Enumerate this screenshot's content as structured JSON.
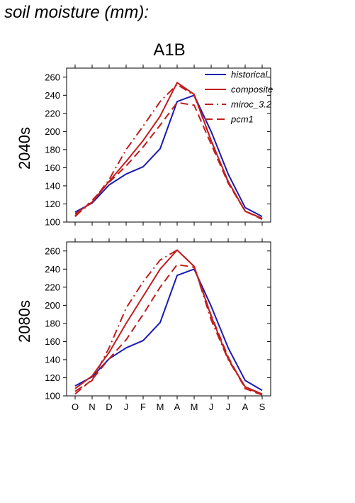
{
  "page": {
    "header_title": "soil moisture (mm):",
    "scenario_title": "A1B"
  },
  "chart_data": [
    {
      "type": "line",
      "row_label": "2040s",
      "categories": [
        "O",
        "N",
        "D",
        "J",
        "F",
        "M",
        "A",
        "M",
        "J",
        "J",
        "A",
        "S"
      ],
      "ylim": [
        100,
        270
      ],
      "yticks": [
        100,
        120,
        140,
        160,
        180,
        200,
        220,
        240,
        260
      ],
      "grid": false,
      "legend_position": "top-right",
      "series": [
        {
          "name": "historical",
          "color": "#1a1ab4",
          "dash": "solid",
          "values": [
            111,
            121,
            141,
            153,
            161,
            181,
            233,
            240,
            200,
            153,
            116,
            106
          ]
        },
        {
          "name": "composite",
          "color": "#c01e1e",
          "dash": "solid",
          "values": [
            109,
            122,
            145,
            167,
            190,
            217,
            254,
            241,
            190,
            145,
            112,
            104
          ]
        },
        {
          "name": "miroc_3.2",
          "color": "#c01e1e",
          "dash": "dashdot",
          "values": [
            107,
            122,
            147,
            180,
            206,
            233,
            252,
            240,
            190,
            144,
            112,
            104
          ]
        },
        {
          "name": "pcm1",
          "color": "#c01e1e",
          "dash": "dashed",
          "values": [
            106,
            124,
            144,
            162,
            183,
            207,
            232,
            229,
            186,
            143,
            112,
            103
          ]
        }
      ]
    },
    {
      "type": "line",
      "row_label": "2080s",
      "categories": [
        "O",
        "N",
        "D",
        "J",
        "F",
        "M",
        "A",
        "M",
        "J",
        "J",
        "A",
        "S"
      ],
      "ylim": [
        100,
        270
      ],
      "yticks": [
        100,
        120,
        140,
        160,
        180,
        200,
        220,
        240,
        260
      ],
      "grid": false,
      "series": [
        {
          "name": "historical",
          "color": "#1a1ab4",
          "dash": "solid",
          "values": [
            111,
            121,
            141,
            153,
            161,
            181,
            233,
            240,
            199,
            153,
            117,
            106
          ]
        },
        {
          "name": "composite",
          "color": "#c01e1e",
          "dash": "solid",
          "values": [
            108,
            122,
            148,
            180,
            210,
            240,
            261,
            243,
            188,
            141,
            110,
            102
          ]
        },
        {
          "name": "miroc_3.2",
          "color": "#c01e1e",
          "dash": "dashdot",
          "values": [
            105,
            117,
            153,
            197,
            226,
            250,
            261,
            243,
            184,
            140,
            109,
            102
          ]
        },
        {
          "name": "pcm1",
          "color": "#c01e1e",
          "dash": "dashed",
          "values": [
            102,
            118,
            141,
            162,
            190,
            220,
            245,
            242,
            189,
            143,
            108,
            101
          ]
        }
      ]
    }
  ]
}
